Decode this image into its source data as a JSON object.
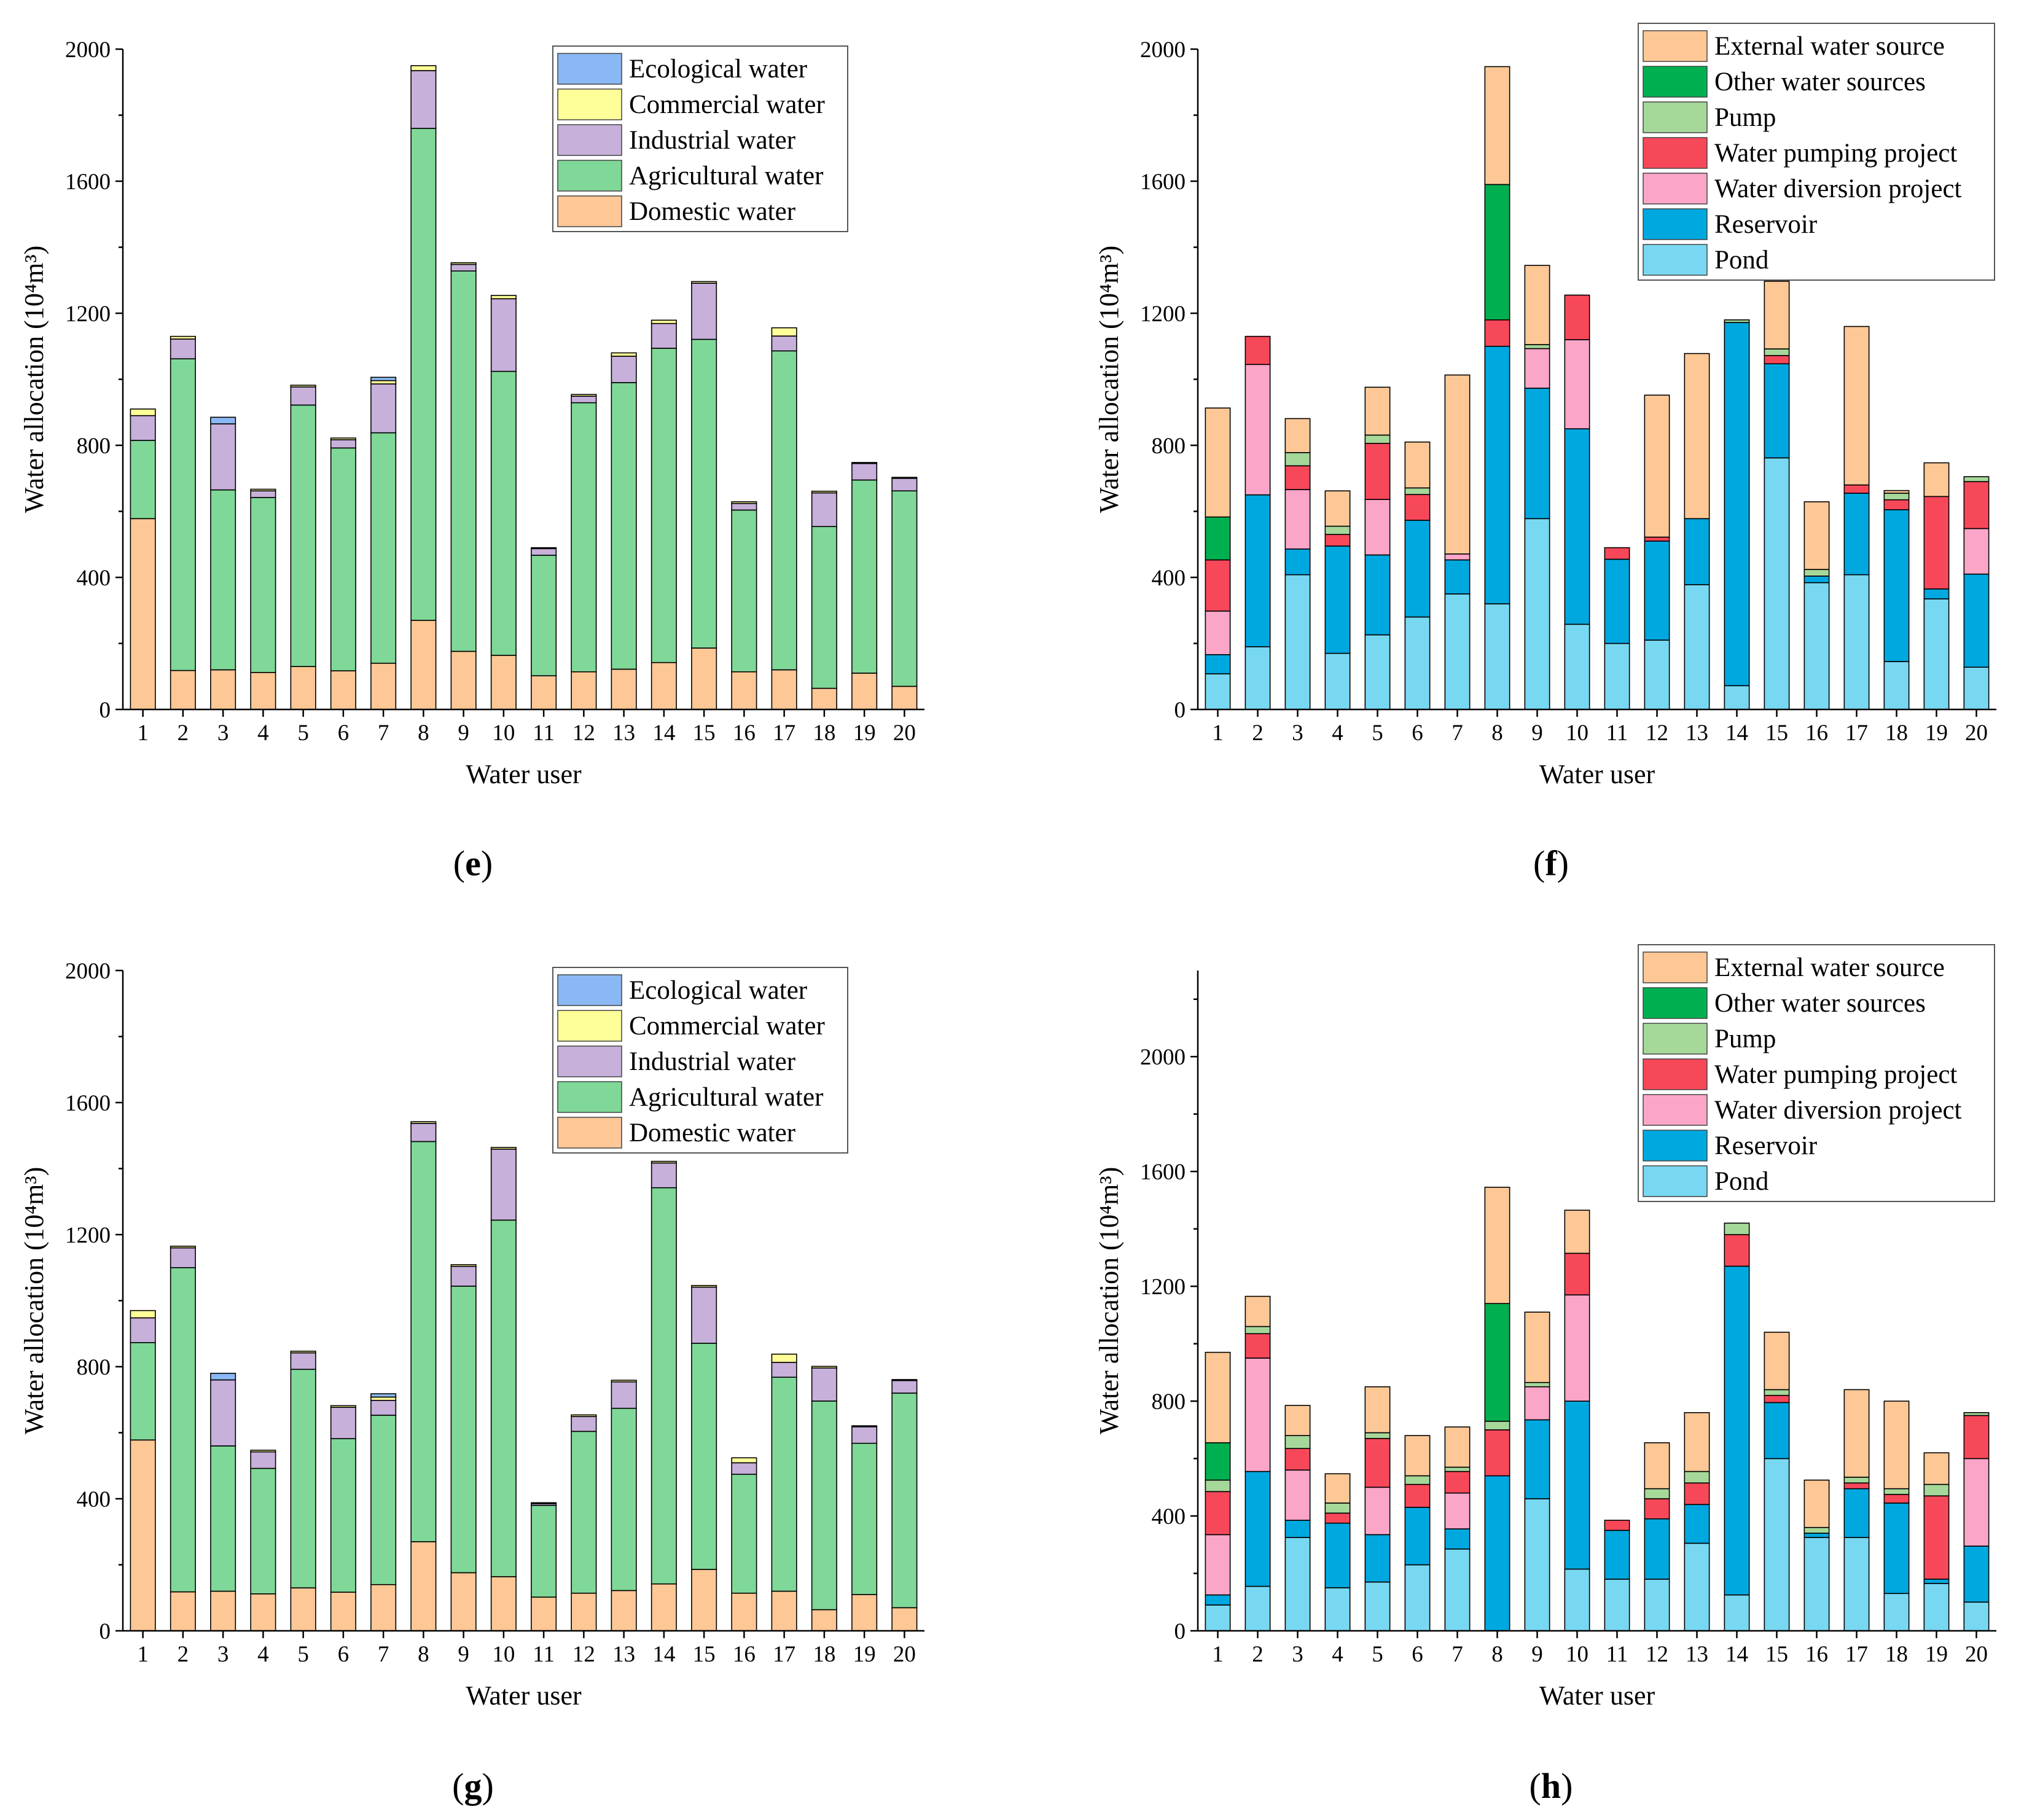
{
  "colors": {
    "Ecological water": "#8ab8f5",
    "Commercial water": "#ffff99",
    "Industrial water": "#c7b0da",
    "Agricultural water": "#7fd898",
    "Domestic water": "#fdc896",
    "External water source": "#fdc896",
    "Other water sources": "#00b050",
    "Pump": "#a6d89a",
    "Water pumping project": "#f7485a",
    "Water diversion project": "#fba6c8",
    "Reservoir": "#00a8e0",
    "Pond": "#78d8f2"
  },
  "chart_data": [
    {
      "panel": "e",
      "type": "bar",
      "stacked": true,
      "xlabel": "Water user",
      "ylabel": "Water allocation (10⁴m³)",
      "ylim": [
        0,
        2000
      ],
      "yticks": [
        0,
        400,
        800,
        1200,
        1600,
        2000
      ],
      "legend_position": "top-right",
      "categories": [
        "1",
        "2",
        "3",
        "4",
        "5",
        "6",
        "7",
        "8",
        "9",
        "10",
        "11",
        "12",
        "13",
        "14",
        "15",
        "16",
        "17",
        "18",
        "19",
        "20"
      ],
      "series": [
        {
          "name": "Domestic water",
          "values": [
            578,
            118,
            120,
            112,
            130,
            117,
            140,
            270,
            176,
            164,
            102,
            114,
            122,
            142,
            186,
            114,
            120,
            64,
            110,
            70
          ]
        },
        {
          "name": "Agricultural water",
          "values": [
            237,
            944,
            545,
            530,
            792,
            675,
            698,
            1490,
            1152,
            860,
            365,
            815,
            868,
            952,
            935,
            490,
            966,
            490,
            585,
            592
          ]
        },
        {
          "name": "Industrial water",
          "values": [
            75,
            60,
            200,
            20,
            55,
            25,
            148,
            175,
            20,
            220,
            20,
            20,
            80,
            75,
            170,
            20,
            45,
            102,
            50,
            38
          ]
        },
        {
          "name": "Commercial water",
          "values": [
            20,
            8,
            0,
            5,
            5,
            5,
            10,
            15,
            5,
            10,
            3,
            5,
            10,
            10,
            5,
            5,
            25,
            5,
            3,
            3
          ]
        },
        {
          "name": "Ecological water",
          "values": [
            0,
            0,
            20,
            0,
            0,
            0,
            10,
            0,
            0,
            0,
            0,
            0,
            0,
            0,
            0,
            0,
            0,
            0,
            0,
            0
          ]
        }
      ]
    },
    {
      "panel": "f",
      "type": "bar",
      "stacked": true,
      "xlabel": "Water user",
      "ylabel": "Water allocation (10⁴m³)",
      "ylim": [
        0,
        2000
      ],
      "yticks": [
        0,
        400,
        800,
        1200,
        1600,
        2000
      ],
      "legend_position": "top-right",
      "categories": [
        "1",
        "2",
        "3",
        "4",
        "5",
        "6",
        "7",
        "8",
        "9",
        "10",
        "11",
        "12",
        "13",
        "14",
        "15",
        "16",
        "17",
        "18",
        "19",
        "20"
      ],
      "series": [
        {
          "name": "Pond",
          "values": [
            108,
            190,
            408,
            170,
            226,
            280,
            350,
            320,
            578,
            258,
            200,
            210,
            378,
            72,
            762,
            384,
            408,
            145,
            335,
            128
          ]
        },
        {
          "name": "Reservoir",
          "values": [
            58,
            460,
            78,
            325,
            242,
            293,
            103,
            780,
            395,
            592,
            255,
            300,
            200,
            1100,
            285,
            20,
            247,
            460,
            30,
            282
          ]
        },
        {
          "name": "Water diversion project",
          "values": [
            132,
            395,
            180,
            0,
            168,
            0,
            18,
            0,
            120,
            270,
            0,
            0,
            0,
            0,
            0,
            0,
            0,
            0,
            0,
            138
          ]
        },
        {
          "name": "Water pumping project",
          "values": [
            155,
            85,
            72,
            35,
            170,
            78,
            0,
            80,
            0,
            135,
            35,
            12,
            0,
            0,
            25,
            0,
            25,
            30,
            280,
            142
          ]
        },
        {
          "name": "Pump",
          "values": [
            0,
            0,
            40,
            25,
            25,
            20,
            0,
            0,
            12,
            0,
            0,
            0,
            0,
            8,
            20,
            20,
            0,
            20,
            0,
            15
          ]
        },
        {
          "name": "Other water sources",
          "values": [
            130,
            0,
            0,
            0,
            0,
            0,
            0,
            410,
            0,
            0,
            0,
            0,
            0,
            0,
            0,
            0,
            0,
            0,
            0,
            0
          ]
        },
        {
          "name": "External water source",
          "values": [
            330,
            0,
            103,
            107,
            145,
            139,
            542,
            357,
            240,
            0,
            0,
            430,
            500,
            0,
            205,
            205,
            480,
            8,
            102,
            0
          ]
        }
      ]
    },
    {
      "panel": "g",
      "type": "bar",
      "stacked": true,
      "xlabel": "Water user",
      "ylabel": "Water allocation (10⁴m³)",
      "ylim": [
        0,
        2000
      ],
      "yticks": [
        0,
        400,
        800,
        1200,
        1600,
        2000
      ],
      "legend_position": "top-right",
      "categories": [
        "1",
        "2",
        "3",
        "4",
        "5",
        "6",
        "7",
        "8",
        "9",
        "10",
        "11",
        "12",
        "13",
        "14",
        "15",
        "16",
        "17",
        "18",
        "19",
        "20"
      ],
      "series": [
        {
          "name": "Domestic water",
          "values": [
            578,
            118,
            120,
            112,
            130,
            117,
            140,
            270,
            176,
            164,
            102,
            114,
            122,
            142,
            186,
            114,
            120,
            64,
            110,
            70
          ]
        },
        {
          "name": "Agricultural water",
          "values": [
            295,
            982,
            440,
            380,
            662,
            465,
            513,
            1212,
            868,
            1080,
            278,
            490,
            552,
            1200,
            685,
            360,
            648,
            632,
            458,
            650
          ]
        },
        {
          "name": "Industrial water",
          "values": [
            75,
            60,
            200,
            50,
            50,
            95,
            45,
            55,
            60,
            215,
            5,
            45,
            80,
            75,
            170,
            35,
            45,
            100,
            50,
            38
          ]
        },
        {
          "name": "Commercial water",
          "values": [
            22,
            5,
            0,
            5,
            5,
            5,
            10,
            5,
            5,
            5,
            3,
            5,
            5,
            5,
            5,
            15,
            25,
            5,
            3,
            3
          ]
        },
        {
          "name": "Ecological water",
          "values": [
            0,
            0,
            20,
            0,
            0,
            0,
            10,
            0,
            0,
            0,
            0,
            0,
            0,
            0,
            0,
            0,
            0,
            0,
            0,
            0
          ]
        }
      ]
    },
    {
      "panel": "h",
      "type": "bar",
      "stacked": true,
      "xlabel": "Water user",
      "ylabel": "Water allocation (10⁴m³)",
      "ylim": [
        0,
        2300
      ],
      "yticks": [
        0,
        400,
        800,
        1200,
        1600,
        2000
      ],
      "legend_position": "top-right",
      "categories": [
        "1",
        "2",
        "3",
        "4",
        "5",
        "6",
        "7",
        "8",
        "9",
        "10",
        "11",
        "12",
        "13",
        "14",
        "15",
        "16",
        "17",
        "18",
        "19",
        "20"
      ],
      "series": [
        {
          "name": "Pond",
          "values": [
            90,
            155,
            325,
            150,
            170,
            230,
            285,
            0,
            460,
            215,
            180,
            180,
            305,
            125,
            600,
            325,
            325,
            130,
            165,
            100
          ]
        },
        {
          "name": "Reservoir",
          "values": [
            35,
            400,
            60,
            225,
            165,
            200,
            70,
            540,
            275,
            585,
            170,
            210,
            135,
            1145,
            195,
            15,
            170,
            315,
            15,
            195
          ]
        },
        {
          "name": "Water diversion project",
          "values": [
            210,
            395,
            175,
            0,
            165,
            0,
            125,
            0,
            115,
            370,
            0,
            0,
            0,
            0,
            0,
            0,
            0,
            0,
            0,
            305
          ]
        },
        {
          "name": "Water pumping project",
          "values": [
            150,
            85,
            75,
            35,
            170,
            80,
            75,
            160,
            0,
            145,
            35,
            70,
            75,
            110,
            25,
            0,
            20,
            30,
            290,
            150
          ]
        },
        {
          "name": "Pump",
          "values": [
            40,
            25,
            45,
            35,
            20,
            30,
            15,
            30,
            15,
            0,
            0,
            35,
            40,
            40,
            20,
            20,
            20,
            20,
            40,
            10
          ]
        },
        {
          "name": "Other water sources",
          "values": [
            130,
            0,
            0,
            0,
            0,
            0,
            0,
            410,
            0,
            0,
            0,
            0,
            0,
            0,
            0,
            0,
            0,
            0,
            0,
            0
          ]
        },
        {
          "name": "External water source",
          "values": [
            315,
            105,
            105,
            102,
            160,
            140,
            140,
            405,
            245,
            150,
            0,
            160,
            205,
            0,
            200,
            165,
            305,
            305,
            110,
            0
          ]
        }
      ]
    }
  ],
  "panel_labels": {
    "e": "(e)",
    "f": "(f)",
    "g": "(g)",
    "h": "(h)"
  }
}
